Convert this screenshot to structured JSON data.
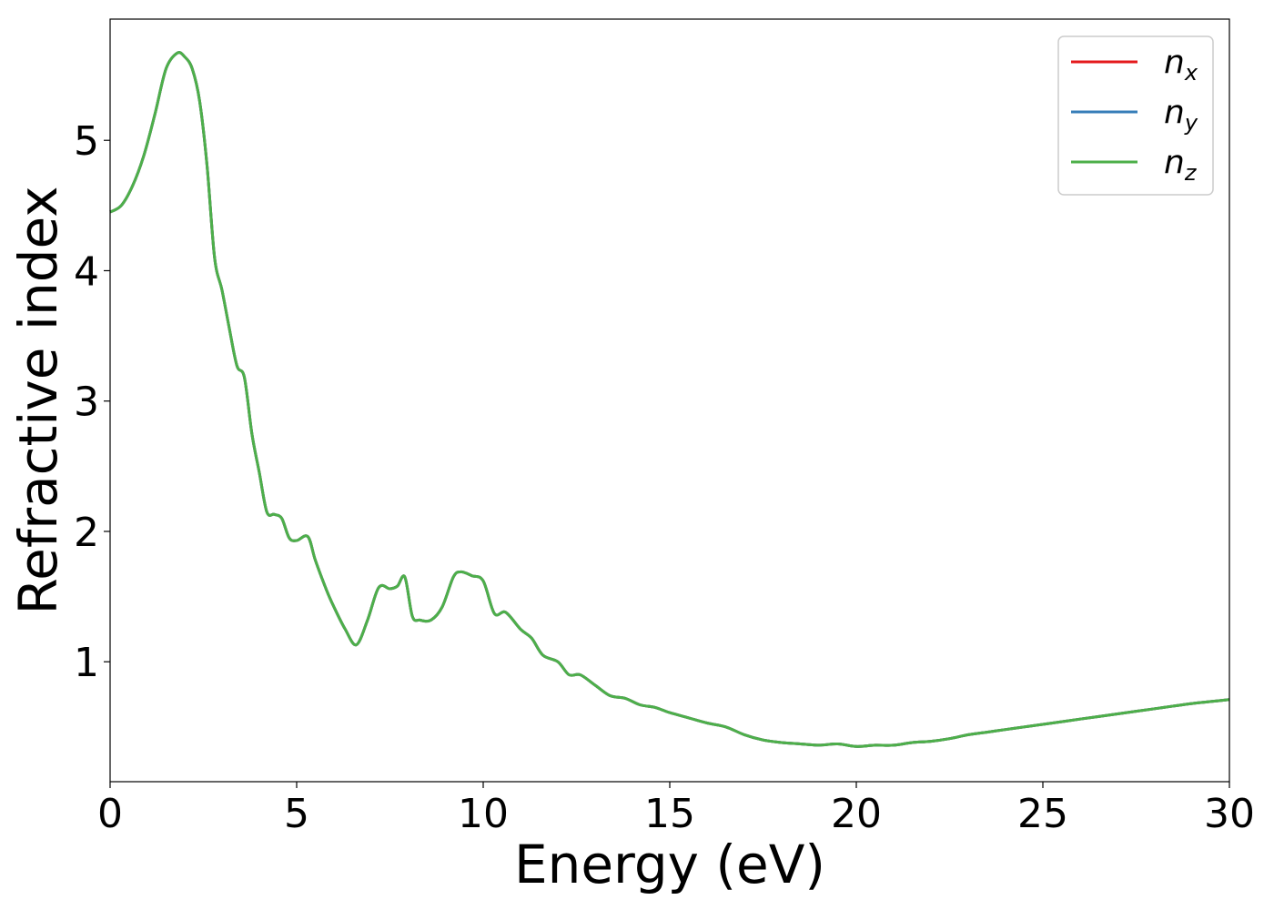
{
  "chart_data": {
    "type": "line",
    "title": "",
    "xlabel": "Energy (eV)",
    "ylabel": "Refractive index",
    "xlim": [
      0,
      30
    ],
    "ylim": [
      0.08,
      5.93
    ],
    "xticks": [
      0,
      5,
      10,
      15,
      20,
      25,
      30
    ],
    "xtick_labels": [
      "0",
      "5",
      "10",
      "15",
      "20",
      "25",
      "30"
    ],
    "yticks": [
      1,
      2,
      3,
      4,
      5
    ],
    "ytick_labels": [
      "1",
      "2",
      "3",
      "4",
      "5"
    ],
    "grid": false,
    "legend_position": "top-right",
    "series": [
      {
        "name": "n",
        "subscript": "x",
        "color": "#e41a1c"
      },
      {
        "name": "n",
        "subscript": "y",
        "color": "#377eb8"
      },
      {
        "name": "n",
        "subscript": "z",
        "color": "#4daf4a"
      }
    ],
    "x": [
      0,
      0.3,
      0.6,
      0.9,
      1.2,
      1.5,
      1.8,
      2.0,
      2.2,
      2.4,
      2.6,
      2.8,
      3.0,
      3.2,
      3.4,
      3.6,
      3.8,
      4.0,
      4.2,
      4.4,
      4.6,
      4.8,
      5.0,
      5.3,
      5.5,
      5.8,
      6.0,
      6.3,
      6.6,
      6.9,
      7.2,
      7.5,
      7.7,
      7.9,
      8.1,
      8.3,
      8.6,
      8.9,
      9.2,
      9.4,
      9.7,
      10.0,
      10.3,
      10.6,
      11.0,
      11.3,
      11.6,
      12.0,
      12.3,
      12.6,
      13.0,
      13.4,
      13.8,
      14.2,
      14.6,
      15.0,
      15.5,
      16.0,
      16.5,
      17.0,
      17.5,
      18.0,
      18.5,
      19.0,
      19.5,
      20.0,
      20.5,
      21.0,
      21.5,
      22.0,
      22.5,
      23.0,
      23.5,
      24.0,
      24.5,
      25.0,
      26.0,
      27.0,
      28.0,
      29.0,
      30.0
    ],
    "values": [
      4.45,
      4.5,
      4.65,
      4.88,
      5.2,
      5.55,
      5.67,
      5.64,
      5.55,
      5.3,
      4.8,
      4.1,
      3.85,
      3.55,
      3.27,
      3.18,
      2.75,
      2.45,
      2.15,
      2.13,
      2.1,
      1.95,
      1.93,
      1.96,
      1.78,
      1.55,
      1.42,
      1.25,
      1.13,
      1.32,
      1.57,
      1.56,
      1.58,
      1.65,
      1.35,
      1.32,
      1.32,
      1.42,
      1.65,
      1.69,
      1.66,
      1.62,
      1.37,
      1.38,
      1.25,
      1.18,
      1.05,
      1.0,
      0.9,
      0.9,
      0.82,
      0.74,
      0.72,
      0.67,
      0.65,
      0.61,
      0.57,
      0.53,
      0.5,
      0.44,
      0.4,
      0.38,
      0.37,
      0.36,
      0.37,
      0.35,
      0.36,
      0.36,
      0.38,
      0.39,
      0.41,
      0.44,
      0.46,
      0.48,
      0.5,
      0.52,
      0.56,
      0.6,
      0.64,
      0.68,
      0.71
    ]
  }
}
